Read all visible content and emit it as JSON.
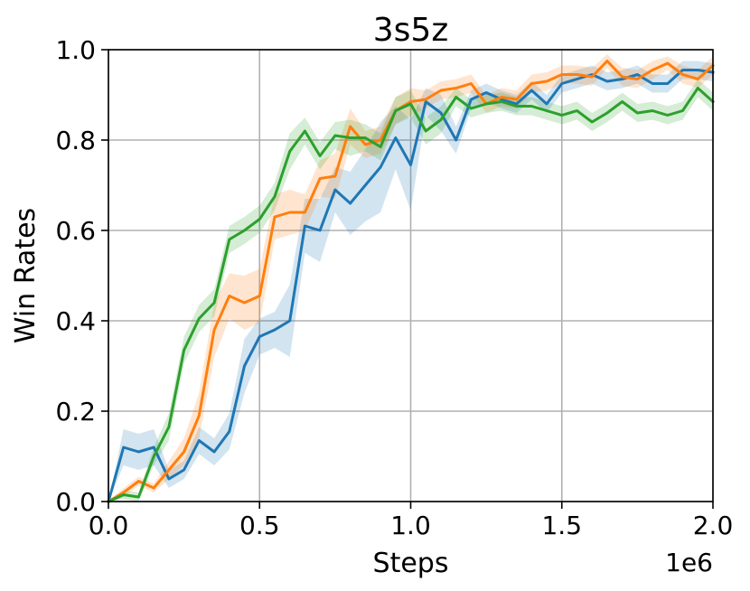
{
  "chart_data": {
    "type": "line",
    "title": "3s5z",
    "xlabel": "Steps",
    "ylabel": "Win Rates",
    "x_offset_label": "1e6",
    "xlim": [
      0.0,
      2.0
    ],
    "ylim": [
      0.0,
      1.0
    ],
    "x_ticks": [
      "0.0",
      "0.5",
      "1.0",
      "1.5",
      "2.0"
    ],
    "y_ticks": [
      "0.0",
      "0.2",
      "0.4",
      "0.6",
      "0.8",
      "1.0"
    ],
    "grid": true,
    "x": [
      0.0,
      0.05,
      0.1,
      0.15,
      0.2,
      0.25,
      0.3,
      0.35,
      0.4,
      0.45,
      0.5,
      0.55,
      0.6,
      0.65,
      0.7,
      0.75,
      0.8,
      0.85,
      0.9,
      0.95,
      1.0,
      1.05,
      1.1,
      1.15,
      1.2,
      1.25,
      1.3,
      1.35,
      1.4,
      1.45,
      1.5,
      1.55,
      1.6,
      1.65,
      1.7,
      1.75,
      1.8,
      1.85,
      1.9,
      1.95,
      2.0
    ],
    "series": [
      {
        "color": "#1f77b4",
        "values": [
          0.0,
          0.12,
          0.11,
          0.12,
          0.05,
          0.07,
          0.135,
          0.11,
          0.155,
          0.3,
          0.365,
          0.38,
          0.4,
          0.61,
          0.6,
          0.69,
          0.66,
          0.7,
          0.74,
          0.805,
          0.745,
          0.885,
          0.86,
          0.8,
          0.89,
          0.905,
          0.89,
          0.88,
          0.91,
          0.88,
          0.925,
          0.935,
          0.945,
          0.93,
          0.935,
          0.945,
          0.925,
          0.925,
          0.955,
          0.955,
          0.95
        ],
        "band": [
          0.0,
          0.04,
          0.04,
          0.04,
          0.02,
          0.02,
          0.03,
          0.03,
          0.04,
          0.06,
          0.04,
          0.04,
          0.08,
          0.06,
          0.07,
          0.05,
          0.07,
          0.08,
          0.1,
          0.07,
          0.1,
          0.03,
          0.04,
          0.03,
          0.02,
          0.02,
          0.02,
          0.02,
          0.02,
          0.02,
          0.02,
          0.02,
          0.02,
          0.02,
          0.02,
          0.02,
          0.02,
          0.02,
          0.02,
          0.02,
          0.02
        ]
      },
      {
        "color": "#ff7f0e",
        "values": [
          0.0,
          0.02,
          0.045,
          0.03,
          0.07,
          0.11,
          0.19,
          0.38,
          0.455,
          0.44,
          0.455,
          0.63,
          0.64,
          0.64,
          0.715,
          0.72,
          0.83,
          0.79,
          0.8,
          0.865,
          0.885,
          0.89,
          0.91,
          0.915,
          0.925,
          0.88,
          0.895,
          0.89,
          0.925,
          0.93,
          0.945,
          0.945,
          0.94,
          0.975,
          0.94,
          0.935,
          0.955,
          0.97,
          0.945,
          0.935,
          0.965
        ],
        "band": [
          0.0,
          0.01,
          0.01,
          0.01,
          0.02,
          0.03,
          0.05,
          0.06,
          0.05,
          0.06,
          0.06,
          0.05,
          0.05,
          0.04,
          0.04,
          0.05,
          0.04,
          0.03,
          0.03,
          0.03,
          0.03,
          0.02,
          0.02,
          0.02,
          0.02,
          0.02,
          0.02,
          0.02,
          0.02,
          0.02,
          0.02,
          0.02,
          0.02,
          0.015,
          0.02,
          0.02,
          0.02,
          0.015,
          0.02,
          0.02,
          0.02
        ]
      },
      {
        "color": "#2ca02c",
        "values": [
          0.0,
          0.015,
          0.01,
          0.1,
          0.165,
          0.335,
          0.405,
          0.44,
          0.58,
          0.6,
          0.625,
          0.675,
          0.775,
          0.82,
          0.765,
          0.81,
          0.805,
          0.805,
          0.785,
          0.865,
          0.88,
          0.82,
          0.845,
          0.895,
          0.87,
          0.88,
          0.885,
          0.875,
          0.875,
          0.865,
          0.855,
          0.865,
          0.84,
          0.86,
          0.885,
          0.86,
          0.865,
          0.855,
          0.865,
          0.915,
          0.885
        ],
        "band": [
          0.0,
          0.01,
          0.01,
          0.02,
          0.03,
          0.03,
          0.03,
          0.03,
          0.03,
          0.03,
          0.03,
          0.03,
          0.04,
          0.03,
          0.03,
          0.03,
          0.04,
          0.03,
          0.03,
          0.03,
          0.03,
          0.03,
          0.03,
          0.02,
          0.02,
          0.02,
          0.02,
          0.02,
          0.02,
          0.02,
          0.02,
          0.02,
          0.02,
          0.02,
          0.02,
          0.02,
          0.02,
          0.02,
          0.02,
          0.02,
          0.02
        ]
      }
    ]
  }
}
